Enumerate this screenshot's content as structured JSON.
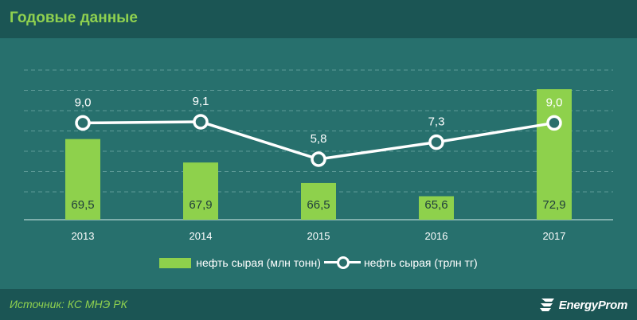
{
  "header": {
    "title": "Годовые данные"
  },
  "chart_data": {
    "type": "bar",
    "categories": [
      "2013",
      "2014",
      "2015",
      "2016",
      "2017"
    ],
    "series": [
      {
        "name": "нефть сырая (млн тонн)",
        "kind": "bar",
        "color": "#8ed14c",
        "values": [
          69.5,
          67.9,
          66.5,
          65.6,
          72.9
        ],
        "labels": [
          "69,5",
          "67,9",
          "66,5",
          "65,6",
          "72,9"
        ]
      },
      {
        "name": "нефть сырая (трлн тг)",
        "kind": "line",
        "color": "#ffffff",
        "values": [
          9.0,
          9.1,
          5.8,
          7.3,
          9.0
        ],
        "labels": [
          "9,0",
          "9,1",
          "5,8",
          "7,3",
          "9,0"
        ]
      }
    ],
    "legend_position": "bottom",
    "grid": true
  },
  "legend": {
    "bar_label": "нефть сырая (млн тонн)",
    "line_label": "нефть сырая (трлн тг)"
  },
  "footer": {
    "source": "Источник: КС МНЭ РК",
    "logo_text": "EnergyProm"
  }
}
